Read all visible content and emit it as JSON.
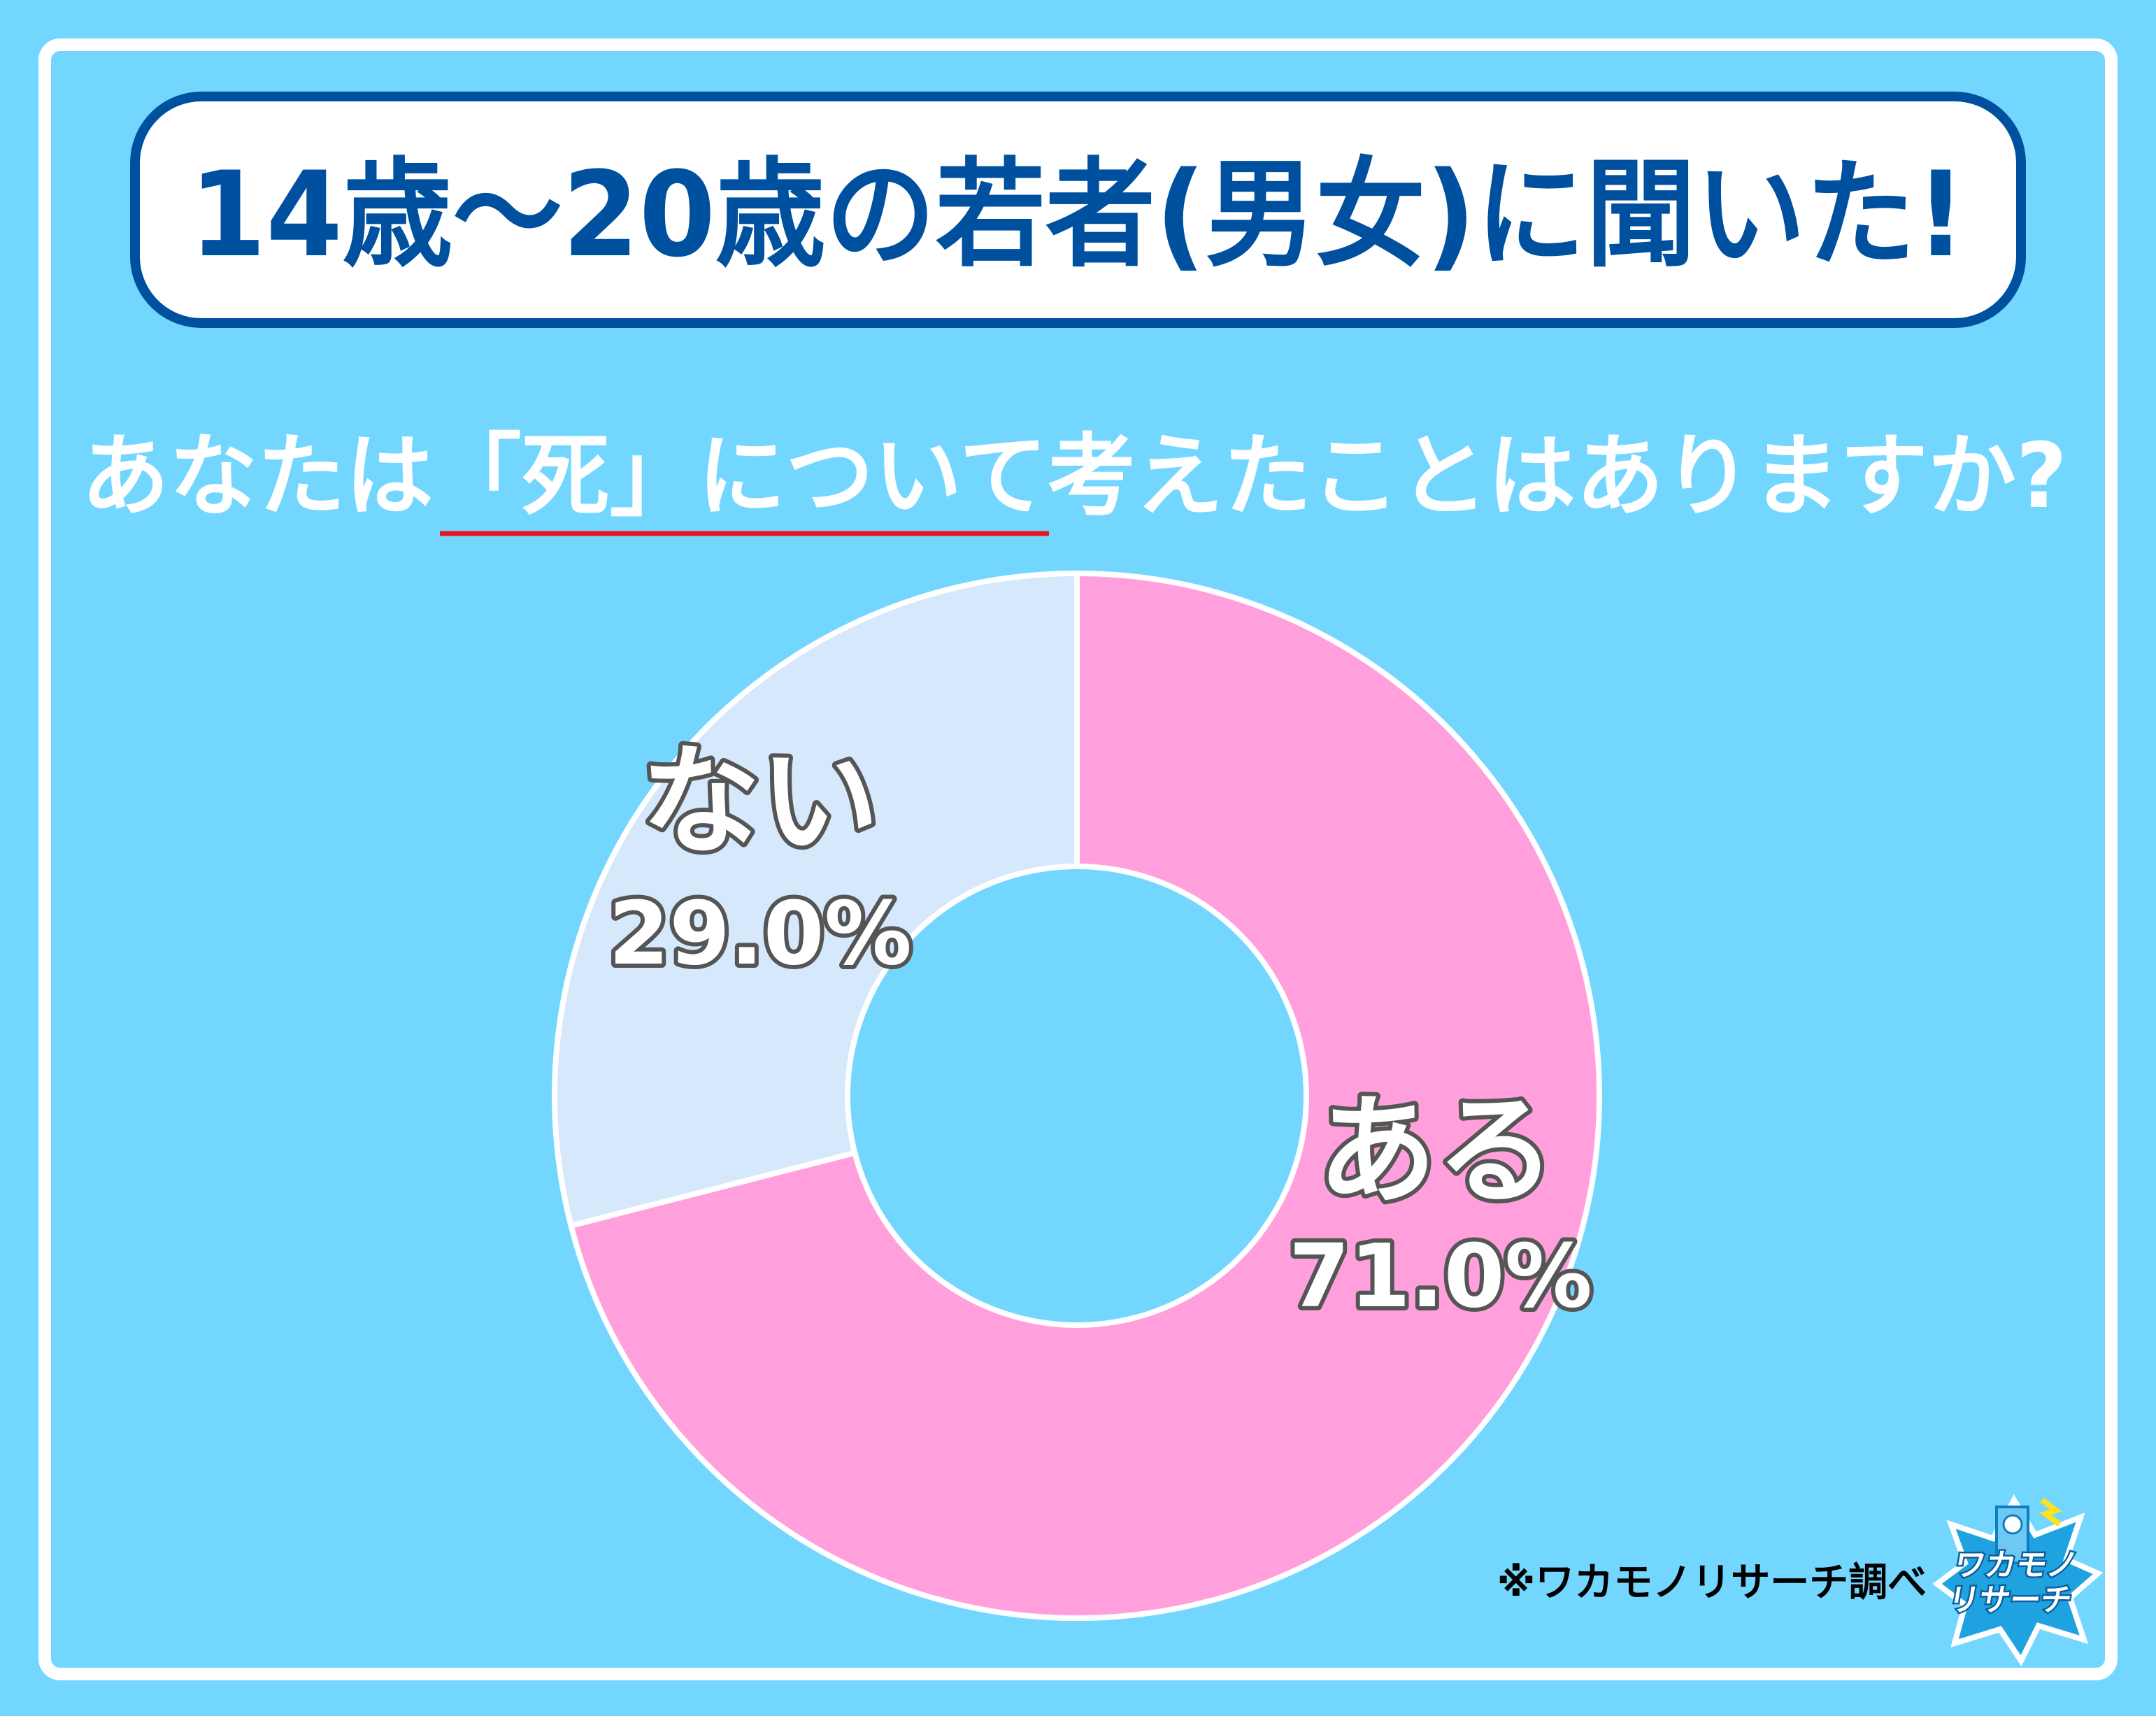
{
  "header": {
    "title": "14歳～20歳の若者(男女)に聞いた!"
  },
  "question": {
    "text": "あなたは「死」について考えたことはありますか?",
    "underline_color": "#e8141e"
  },
  "chart_data": {
    "type": "pie",
    "donut": true,
    "categories": [
      "ある",
      "ない"
    ],
    "values": [
      71.0,
      29.0
    ],
    "data_labels": [
      "71.0%",
      "29.0%"
    ],
    "colors": [
      "#ffa0dc",
      "#d5e8fc"
    ],
    "title": "",
    "legend": "none",
    "start": "top",
    "direction": "clockwise"
  },
  "footer": {
    "source": "※ワカモノリサーチ調べ",
    "logo_text": "ワカモノリサーチ"
  },
  "colors": {
    "background": "#73d6fe",
    "title_blue": "#0050a0",
    "frame": "#ffffff"
  }
}
